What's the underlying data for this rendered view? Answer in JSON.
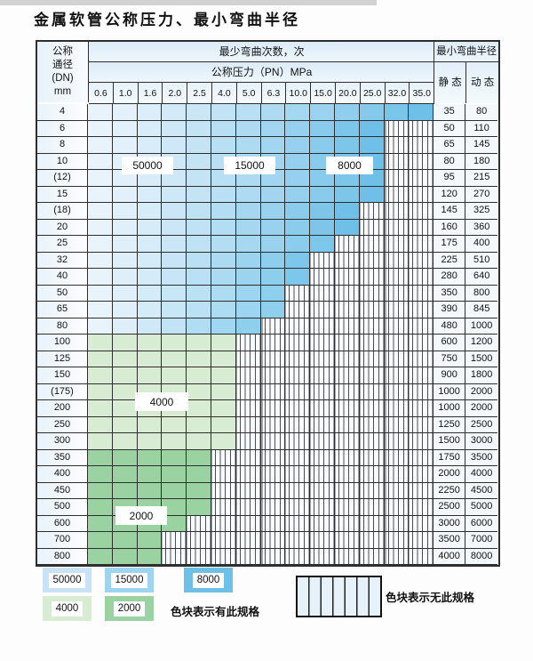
{
  "title": "金属软管公称压力、最小弯曲半径",
  "table": {
    "dn_header_lines": [
      "公称",
      "通径",
      "(DN)",
      "mm"
    ],
    "cycles_header": "最少弯曲次数，次",
    "pressure_header": "公称压力（PN）MPa",
    "radius_header": "最小弯曲半径",
    "static_label": "静 态",
    "dynamic_label": "动 态",
    "pressure_columns": [
      "0.6",
      "1.0",
      "1.6",
      "2.0",
      "2.5",
      "4.0",
      "5.0",
      "6.3",
      "10.0",
      "15.0",
      "20.0",
      "25.0",
      "32.0",
      "35.0"
    ]
  },
  "overlay_labels": {
    "v50000": "50000",
    "v15000": "15000",
    "v8000": "8000",
    "v4000": "4000",
    "v2000": "2000"
  },
  "legend": {
    "blocks": [
      {
        "label": "50000",
        "color": "#c9e3f5"
      },
      {
        "label": "15000",
        "color": "#9fd4f0"
      },
      {
        "label": "8000",
        "color": "#6fc0e8"
      },
      {
        "label": "4000",
        "color": "#d8ecd3"
      },
      {
        "label": "2000",
        "color": "#9bd2a1"
      }
    ],
    "has_spec_text": "色块表示有此规格",
    "no_spec_text": "色块表示无此规格"
  },
  "colors": {
    "cell_light_start": "#e8f3fb",
    "blue_end_strong": "#6fc0e8",
    "blue_end_mid": "#7cc7eb",
    "blue_end_soft": "#8ecfee",
    "green_light": "#d8ecd3",
    "green_dark": "#9bd2a1",
    "stripe_bg": "#f7fbfe",
    "stripe_line": "#3a3a3a",
    "border": "#2e2e2e"
  },
  "chart_data": {
    "type": "table",
    "title": "金属软管公称压力、最小弯曲半径",
    "columns": [
      "公称通径(DN) mm",
      "0.6",
      "1.0",
      "1.6",
      "2.0",
      "2.5",
      "4.0",
      "5.0",
      "6.3",
      "10.0",
      "15.0",
      "20.0",
      "25.0",
      "32.0",
      "35.0",
      "静态",
      "动态"
    ],
    "cycle_legend": {
      "blue_zones": [
        "50000",
        "15000",
        "8000"
      ],
      "green_light": "4000",
      "green_dark": "2000",
      "striped": "无此规格"
    },
    "rows": [
      {
        "dn": "4",
        "max_pn": "35.0",
        "zone": "blue",
        "static": "35",
        "dynamic": "80"
      },
      {
        "dn": "6",
        "max_pn": "25.0",
        "zone": "blue",
        "static": "50",
        "dynamic": "110"
      },
      {
        "dn": "8",
        "max_pn": "25.0",
        "zone": "blue",
        "static": "65",
        "dynamic": "145"
      },
      {
        "dn": "10",
        "max_pn": "25.0",
        "zone": "blue",
        "static": "80",
        "dynamic": "180"
      },
      {
        "dn": "(12)",
        "max_pn": "25.0",
        "zone": "blue",
        "static": "95",
        "dynamic": "215"
      },
      {
        "dn": "15",
        "max_pn": "25.0",
        "zone": "blue",
        "static": "120",
        "dynamic": "270"
      },
      {
        "dn": "(18)",
        "max_pn": "20.0",
        "zone": "blue",
        "static": "145",
        "dynamic": "325"
      },
      {
        "dn": "20",
        "max_pn": "20.0",
        "zone": "blue",
        "static": "160",
        "dynamic": "360"
      },
      {
        "dn": "25",
        "max_pn": "15.0",
        "zone": "blue",
        "static": "175",
        "dynamic": "400"
      },
      {
        "dn": "32",
        "max_pn": "10.0",
        "zone": "blue",
        "static": "225",
        "dynamic": "510"
      },
      {
        "dn": "40",
        "max_pn": "10.0",
        "zone": "blue",
        "static": "280",
        "dynamic": "640"
      },
      {
        "dn": "50",
        "max_pn": "6.3",
        "zone": "blue",
        "static": "350",
        "dynamic": "800"
      },
      {
        "dn": "65",
        "max_pn": "6.3",
        "zone": "blue",
        "static": "390",
        "dynamic": "845"
      },
      {
        "dn": "80",
        "max_pn": "5.0",
        "zone": "blue",
        "static": "480",
        "dynamic": "1000"
      },
      {
        "dn": "100",
        "max_pn": "4.0",
        "zone": "green_light",
        "static": "600",
        "dynamic": "1200"
      },
      {
        "dn": "125",
        "max_pn": "4.0",
        "zone": "green_light",
        "static": "750",
        "dynamic": "1500"
      },
      {
        "dn": "150",
        "max_pn": "4.0",
        "zone": "green_light",
        "static": "900",
        "dynamic": "1800"
      },
      {
        "dn": "(175)",
        "max_pn": "4.0",
        "zone": "green_light",
        "static": "1000",
        "dynamic": "2000"
      },
      {
        "dn": "200",
        "max_pn": "4.0",
        "zone": "green_light",
        "static": "1000",
        "dynamic": "2000"
      },
      {
        "dn": "250",
        "max_pn": "4.0",
        "zone": "green_light",
        "static": "1250",
        "dynamic": "2500"
      },
      {
        "dn": "300",
        "max_pn": "4.0",
        "zone": "green_light",
        "static": "1500",
        "dynamic": "3000"
      },
      {
        "dn": "350",
        "max_pn": "2.5",
        "zone": "green_dark",
        "static": "1750",
        "dynamic": "3500"
      },
      {
        "dn": "400",
        "max_pn": "2.5",
        "zone": "green_dark",
        "static": "2000",
        "dynamic": "4000"
      },
      {
        "dn": "450",
        "max_pn": "2.5",
        "zone": "green_dark",
        "static": "2250",
        "dynamic": "4500"
      },
      {
        "dn": "500",
        "max_pn": "2.5",
        "zone": "green_dark",
        "static": "2500",
        "dynamic": "5000"
      },
      {
        "dn": "600",
        "max_pn": "2.0",
        "zone": "green_dark",
        "static": "3000",
        "dynamic": "6000"
      },
      {
        "dn": "700",
        "max_pn": "1.6",
        "zone": "green_dark",
        "static": "3500",
        "dynamic": "7000"
      },
      {
        "dn": "800",
        "max_pn": "1.6",
        "zone": "green_dark",
        "static": "4000",
        "dynamic": "8000"
      }
    ]
  }
}
